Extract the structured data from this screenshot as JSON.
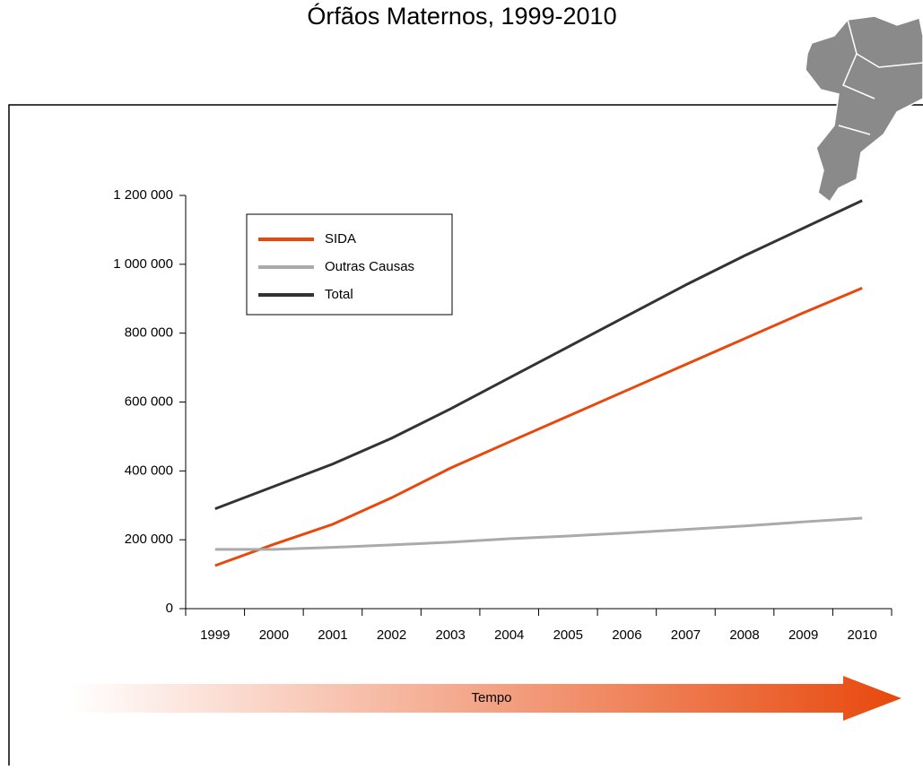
{
  "chart_data": {
    "type": "line",
    "title": "Órfãos Maternos, 1999-2010",
    "annotation": "Tempo",
    "categories": [
      "1999",
      "2000",
      "2001",
      "2002",
      "2003",
      "2004",
      "2005",
      "2006",
      "2007",
      "2008",
      "2009",
      "2010"
    ],
    "series": [
      {
        "name": "SIDA",
        "color": "#e8480c",
        "values": [
          125000,
          187000,
          245000,
          322000,
          408000,
          484000,
          559000,
          634000,
          709000,
          784000,
          859000,
          931000
        ]
      },
      {
        "name": "Outras Causas",
        "color": "#aaaaaa",
        "values": [
          172000,
          172000,
          178000,
          185000,
          193000,
          203000,
          211000,
          220000,
          230000,
          240000,
          252000,
          263000
        ]
      },
      {
        "name": "Total",
        "color": "#333333",
        "values": [
          290000,
          355000,
          420000,
          495000,
          580000,
          670000,
          760000,
          850000,
          940000,
          1025000,
          1105000,
          1185000
        ]
      }
    ],
    "ylim": [
      0,
      1200000
    ],
    "yticks": [
      0,
      {
        "value": 200000,
        "label": "200 000"
      },
      {
        "value": 400000,
        "label": "400 000"
      },
      {
        "value": 600000,
        "label": "600 000"
      },
      {
        "value": 800000,
        "label": "800 000"
      },
      {
        "value": 1000000,
        "label": "1 000 000"
      },
      {
        "value": 1200000,
        "label": "1 200 000"
      }
    ],
    "grid": false,
    "legend": "upper left"
  }
}
